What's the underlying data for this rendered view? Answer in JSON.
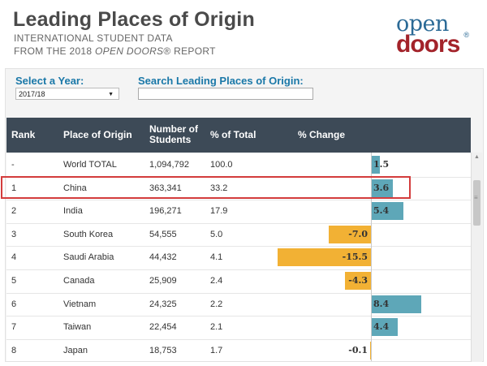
{
  "header": {
    "title": "Leading Places of Origin",
    "subtitle_line1": "INTERNATIONAL STUDENT DATA",
    "subtitle_line2_prefix": "FROM THE 2018 ",
    "subtitle_line2_italic": "OPEN DOORS",
    "subtitle_line2_suffix": "® REPORT"
  },
  "logo": {
    "top": "open",
    "bottom": "doors",
    "reg": "®"
  },
  "filters": {
    "year_label": "Select a Year:",
    "year_value": "2017/18",
    "search_label": "Search Leading Places of Origin:",
    "search_value": ""
  },
  "table": {
    "columns": [
      "Rank",
      "Place of Origin",
      "Number of Students",
      "% of Total",
      "% Change"
    ],
    "column_lines": {
      "num_line1": "Number of",
      "num_line2": "Students"
    },
    "rows": [
      {
        "rank": "-",
        "place": "World TOTAL",
        "students": "1,094,792",
        "pct": "100.0",
        "change": 1.5,
        "change_label": "1.5"
      },
      {
        "rank": "1",
        "place": "China",
        "students": "363,341",
        "pct": "33.2",
        "change": 3.6,
        "change_label": "3.6"
      },
      {
        "rank": "2",
        "place": "India",
        "students": "196,271",
        "pct": "17.9",
        "change": 5.4,
        "change_label": "5.4"
      },
      {
        "rank": "3",
        "place": "South Korea",
        "students": "54,555",
        "pct": "5.0",
        "change": -7.0,
        "change_label": "-7.0"
      },
      {
        "rank": "4",
        "place": "Saudi Arabia",
        "students": "44,432",
        "pct": "4.1",
        "change": -15.5,
        "change_label": "-15.5"
      },
      {
        "rank": "5",
        "place": "Canada",
        "students": "25,909",
        "pct": "2.4",
        "change": -4.3,
        "change_label": "-4.3"
      },
      {
        "rank": "6",
        "place": "Vietnam",
        "students": "24,325",
        "pct": "2.2",
        "change": 8.4,
        "change_label": "8.4"
      },
      {
        "rank": "7",
        "place": "Taiwan",
        "students": "22,454",
        "pct": "2.1",
        "change": 4.4,
        "change_label": "4.4"
      },
      {
        "rank": "8",
        "place": "Japan",
        "students": "18,753",
        "pct": "1.7",
        "change": -0.1,
        "change_label": "-0.1"
      }
    ],
    "highlighted_row": 1
  },
  "colors": {
    "header_bg": "#3d4a57",
    "positive_bar": "#5ea7b8",
    "negative_bar": "#f2b134",
    "highlight": "#d33c3c",
    "label_blue": "#1a78a8"
  }
}
